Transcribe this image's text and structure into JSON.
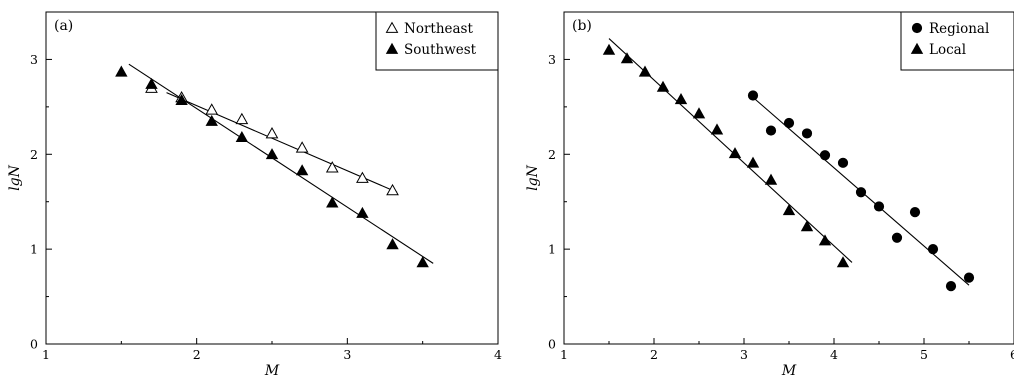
{
  "chart_data": [
    {
      "panel_label": "(a)",
      "type": "scatter",
      "xlabel": "M",
      "ylabel": "lgN",
      "xlim": [
        1,
        4
      ],
      "ylim": [
        0,
        3.5
      ],
      "xticks": [
        "1",
        "2",
        "3",
        "4"
      ],
      "yticks": [
        "0",
        "1",
        "2",
        "3"
      ],
      "legend_position": "top-right",
      "series": [
        {
          "name": "Northeast",
          "marker": "triangle-open",
          "x": [
            1.7,
            1.9,
            2.1,
            2.3,
            2.5,
            2.7,
            2.9,
            3.1,
            3.3
          ],
          "y": [
            2.7,
            2.6,
            2.47,
            2.37,
            2.22,
            2.07,
            1.86,
            1.75,
            1.62
          ],
          "fit": [
            [
              1.8,
              2.65
            ],
            [
              3.33,
              1.6
            ]
          ]
        },
        {
          "name": "Southwest",
          "marker": "triangle-filled",
          "x": [
            1.5,
            1.7,
            1.9,
            2.1,
            2.3,
            2.5,
            2.7,
            2.9,
            3.1,
            3.3,
            3.5
          ],
          "y": [
            2.87,
            2.74,
            2.57,
            2.35,
            2.18,
            2.0,
            1.83,
            1.49,
            1.38,
            1.05,
            0.86
          ],
          "fit": [
            [
              1.55,
              2.95
            ],
            [
              3.57,
              0.85
            ]
          ]
        }
      ]
    },
    {
      "panel_label": "(b)",
      "type": "scatter",
      "xlabel": "M",
      "ylabel": "lgN",
      "xlim": [
        1,
        6
      ],
      "ylim": [
        0,
        3.5
      ],
      "xticks": [
        "1",
        "2",
        "3",
        "4",
        "5",
        "6"
      ],
      "yticks": [
        "0",
        "1",
        "2",
        "3"
      ],
      "legend_position": "top-right",
      "series": [
        {
          "name": "Regional",
          "marker": "circle-filled",
          "x": [
            3.1,
            3.3,
            3.5,
            3.7,
            3.9,
            4.1,
            4.3,
            4.5,
            4.7,
            4.9,
            5.1,
            5.3,
            5.5
          ],
          "y": [
            2.62,
            2.25,
            2.33,
            2.22,
            1.99,
            1.91,
            1.6,
            1.45,
            1.12,
            1.39,
            1.0,
            0.61,
            0.7
          ],
          "fit": [
            [
              3.1,
              2.6
            ],
            [
              5.5,
              0.62
            ]
          ]
        },
        {
          "name": "Local",
          "marker": "triangle-filled",
          "x": [
            1.5,
            1.7,
            1.9,
            2.1,
            2.3,
            2.5,
            2.7,
            2.9,
            3.1,
            3.3,
            3.5,
            3.7,
            3.9,
            4.1
          ],
          "y": [
            3.1,
            3.01,
            2.87,
            2.71,
            2.58,
            2.43,
            2.26,
            2.01,
            1.91,
            1.73,
            1.41,
            1.24,
            1.09,
            0.86
          ],
          "fit": [
            [
              1.5,
              3.22
            ],
            [
              4.2,
              0.86
            ]
          ]
        }
      ]
    }
  ]
}
